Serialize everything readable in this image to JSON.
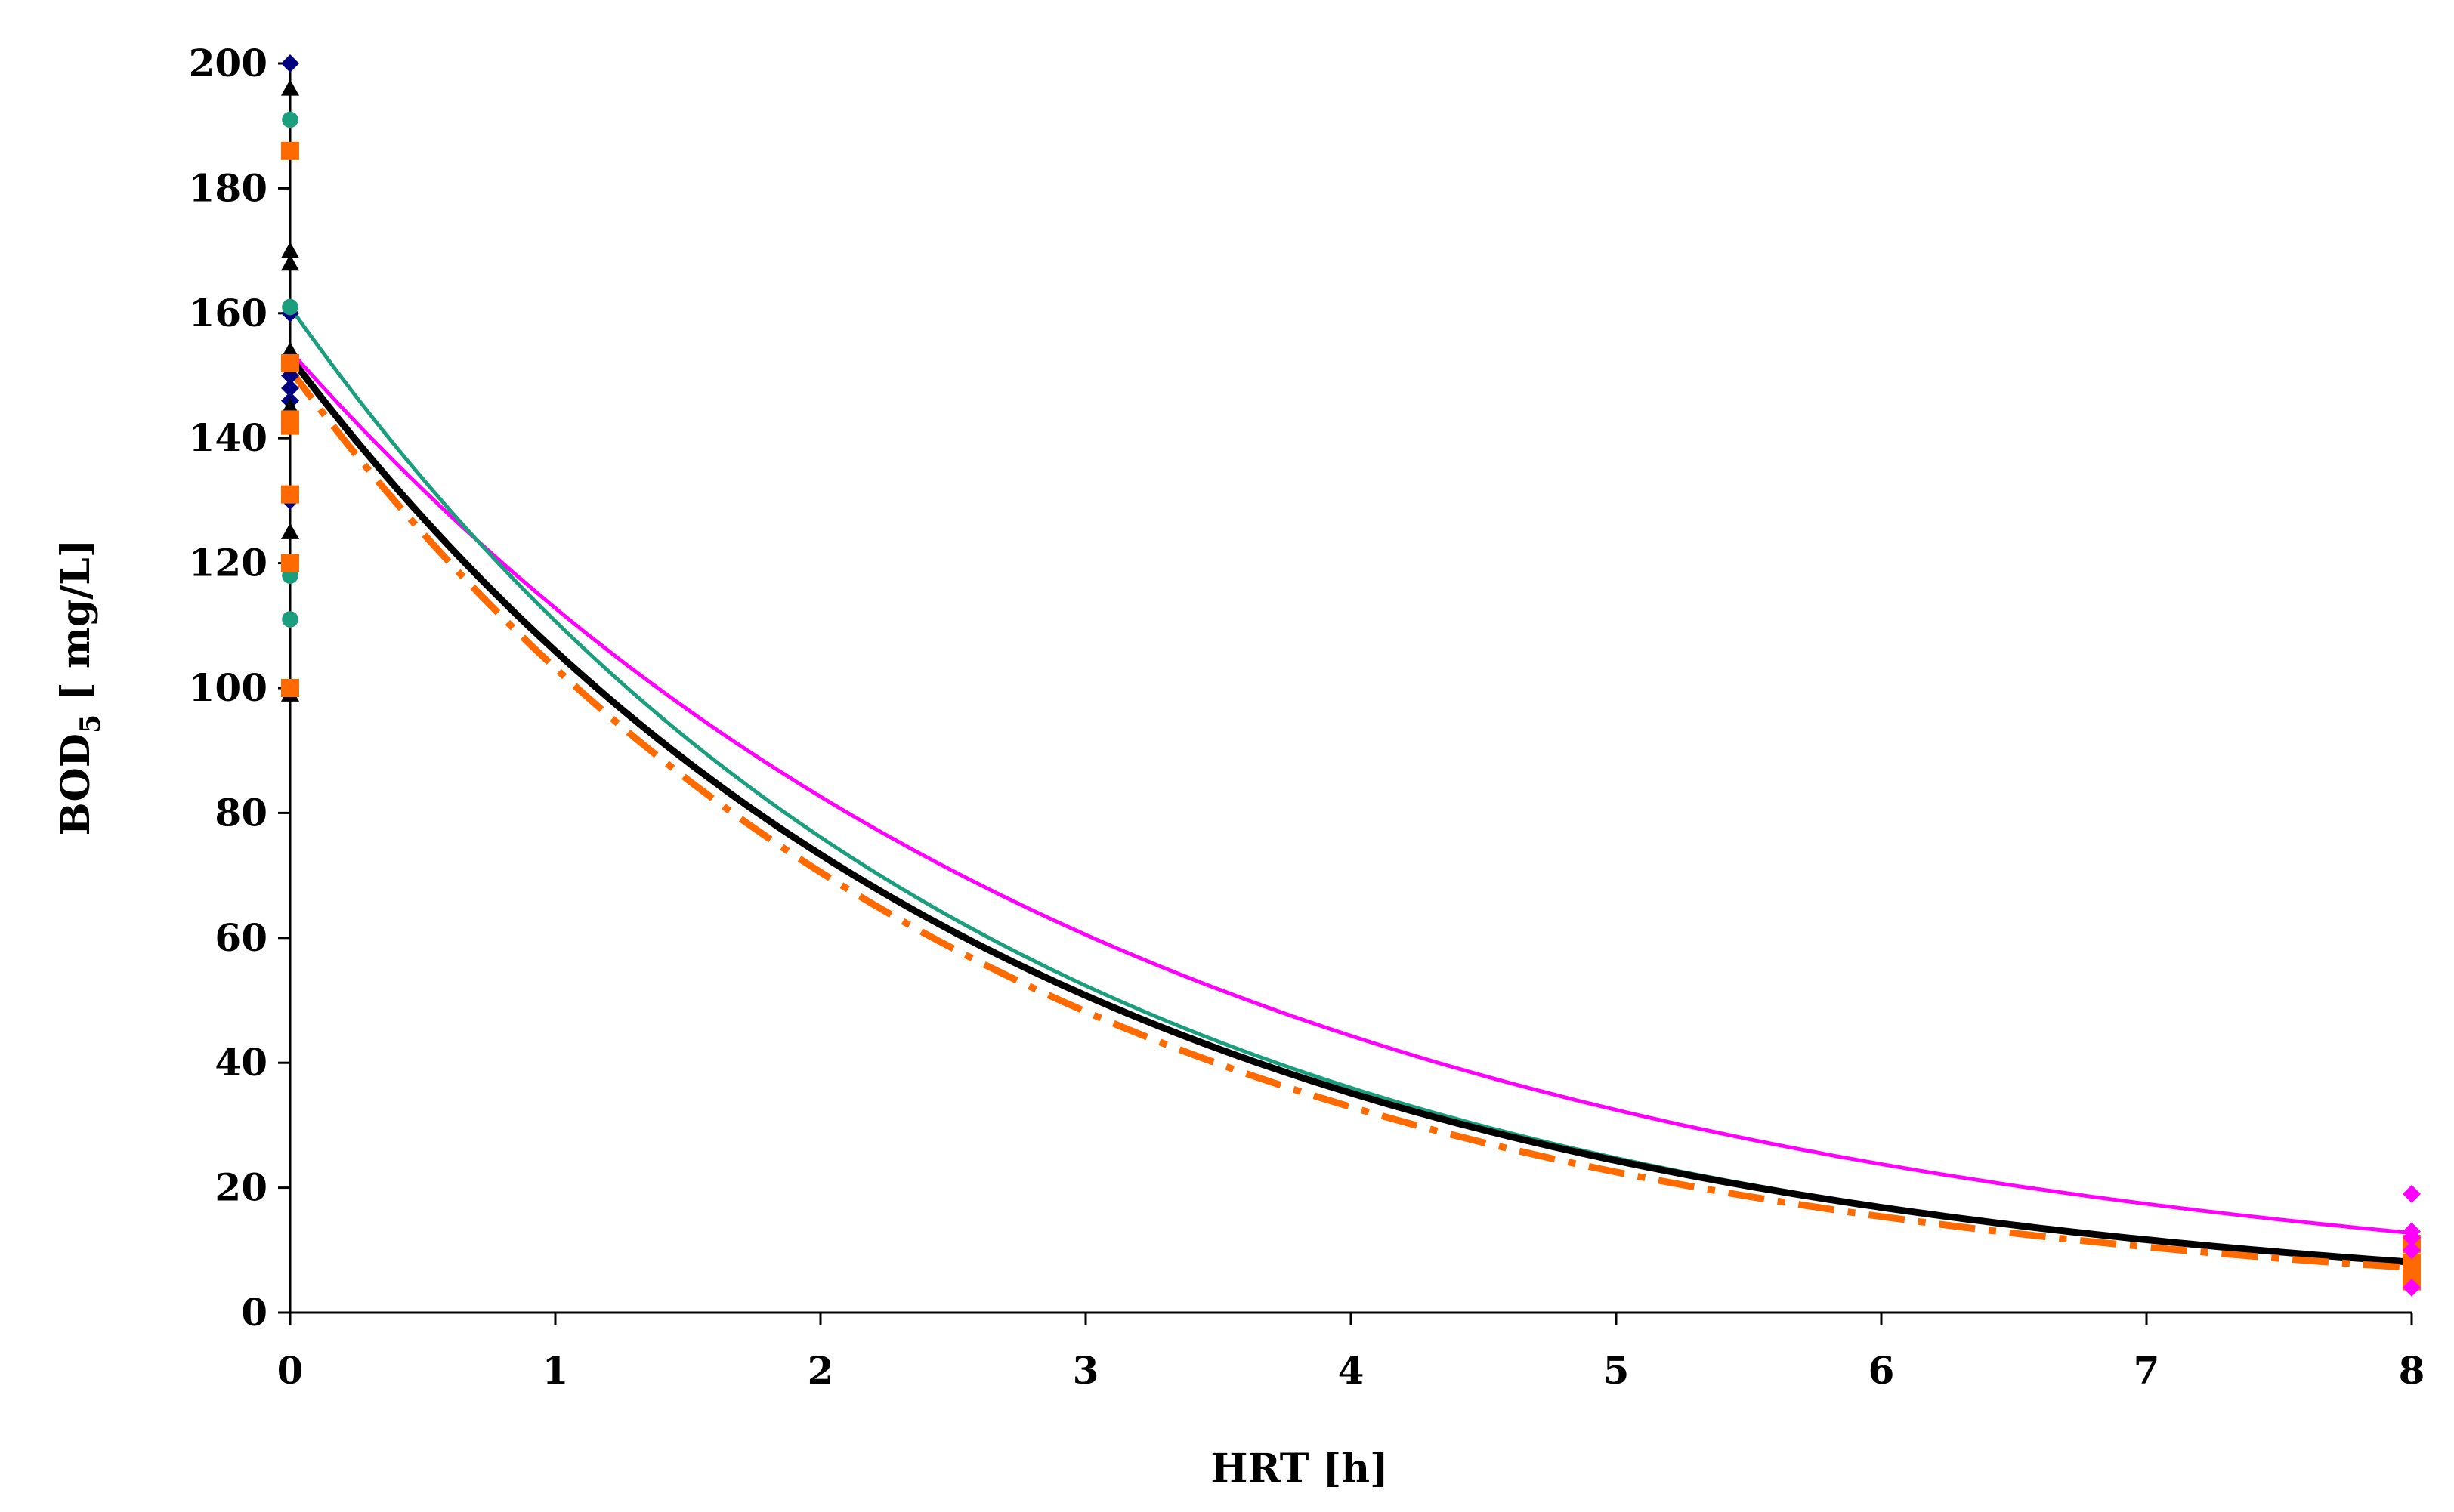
{
  "chart_data": {
    "type": "scatter",
    "title": "",
    "xlabel": "HRT [h]",
    "ylabel": {
      "main": "BOD",
      "sub": "5",
      "rest": " [ mg/L]"
    },
    "xlim": [
      0,
      8
    ],
    "ylim": [
      0,
      200
    ],
    "x_ticks": [
      "0",
      "1",
      "2",
      "3",
      "4",
      "5",
      "6",
      "7",
      "8"
    ],
    "y_ticks": [
      "0",
      "20",
      "40",
      "60",
      "80",
      "100",
      "120",
      "140",
      "160",
      "180",
      "200"
    ],
    "grid": false,
    "legend": "none",
    "scatter_series": [
      {
        "marker": "diamond",
        "color": "#000080",
        "points": [
          [
            0,
            200
          ],
          [
            0,
            160
          ],
          [
            0,
            150
          ],
          [
            0,
            148
          ],
          [
            0,
            146
          ],
          [
            0,
            144
          ],
          [
            0,
            130
          ]
        ]
      },
      {
        "marker": "triangle",
        "color": "#000000",
        "points": [
          [
            0,
            196
          ],
          [
            0,
            170
          ],
          [
            0,
            168
          ],
          [
            0,
            154
          ],
          [
            0,
            145
          ],
          [
            0,
            131
          ],
          [
            0,
            125
          ],
          [
            0,
            99
          ]
        ]
      },
      {
        "marker": "circle",
        "color": "#1a9e7e",
        "points": [
          [
            0,
            191
          ],
          [
            0,
            161
          ],
          [
            0,
            131
          ],
          [
            0,
            118
          ],
          [
            0,
            111
          ]
        ]
      },
      {
        "marker": "square",
        "color": "#ff6a00",
        "points": [
          [
            0,
            186
          ],
          [
            0,
            152
          ],
          [
            0,
            143
          ],
          [
            0,
            142
          ],
          [
            0,
            131
          ],
          [
            0,
            120
          ],
          [
            0,
            100
          ],
          [
            8,
            11
          ],
          [
            8,
            8
          ],
          [
            8,
            6
          ],
          [
            8,
            5
          ]
        ]
      },
      {
        "marker": "diamond",
        "color": "#ff00ff",
        "points": [
          [
            8,
            19
          ],
          [
            8,
            13
          ],
          [
            8,
            12
          ],
          [
            8,
            10
          ],
          [
            8,
            4
          ]
        ]
      }
    ],
    "curves": [
      {
        "color": "#ff00ff",
        "style": "solid",
        "y0": 154,
        "k": 0.3114
      },
      {
        "color": "#1a9e7e",
        "style": "solid",
        "y0": 161,
        "k": 0.3745
      },
      {
        "color": "#000000",
        "style": "solid-thick",
        "y0": 153,
        "k": 0.3677
      },
      {
        "color": "#ff6a00",
        "style": "dash-dot",
        "y0": 151,
        "k": 0.3807
      }
    ]
  }
}
